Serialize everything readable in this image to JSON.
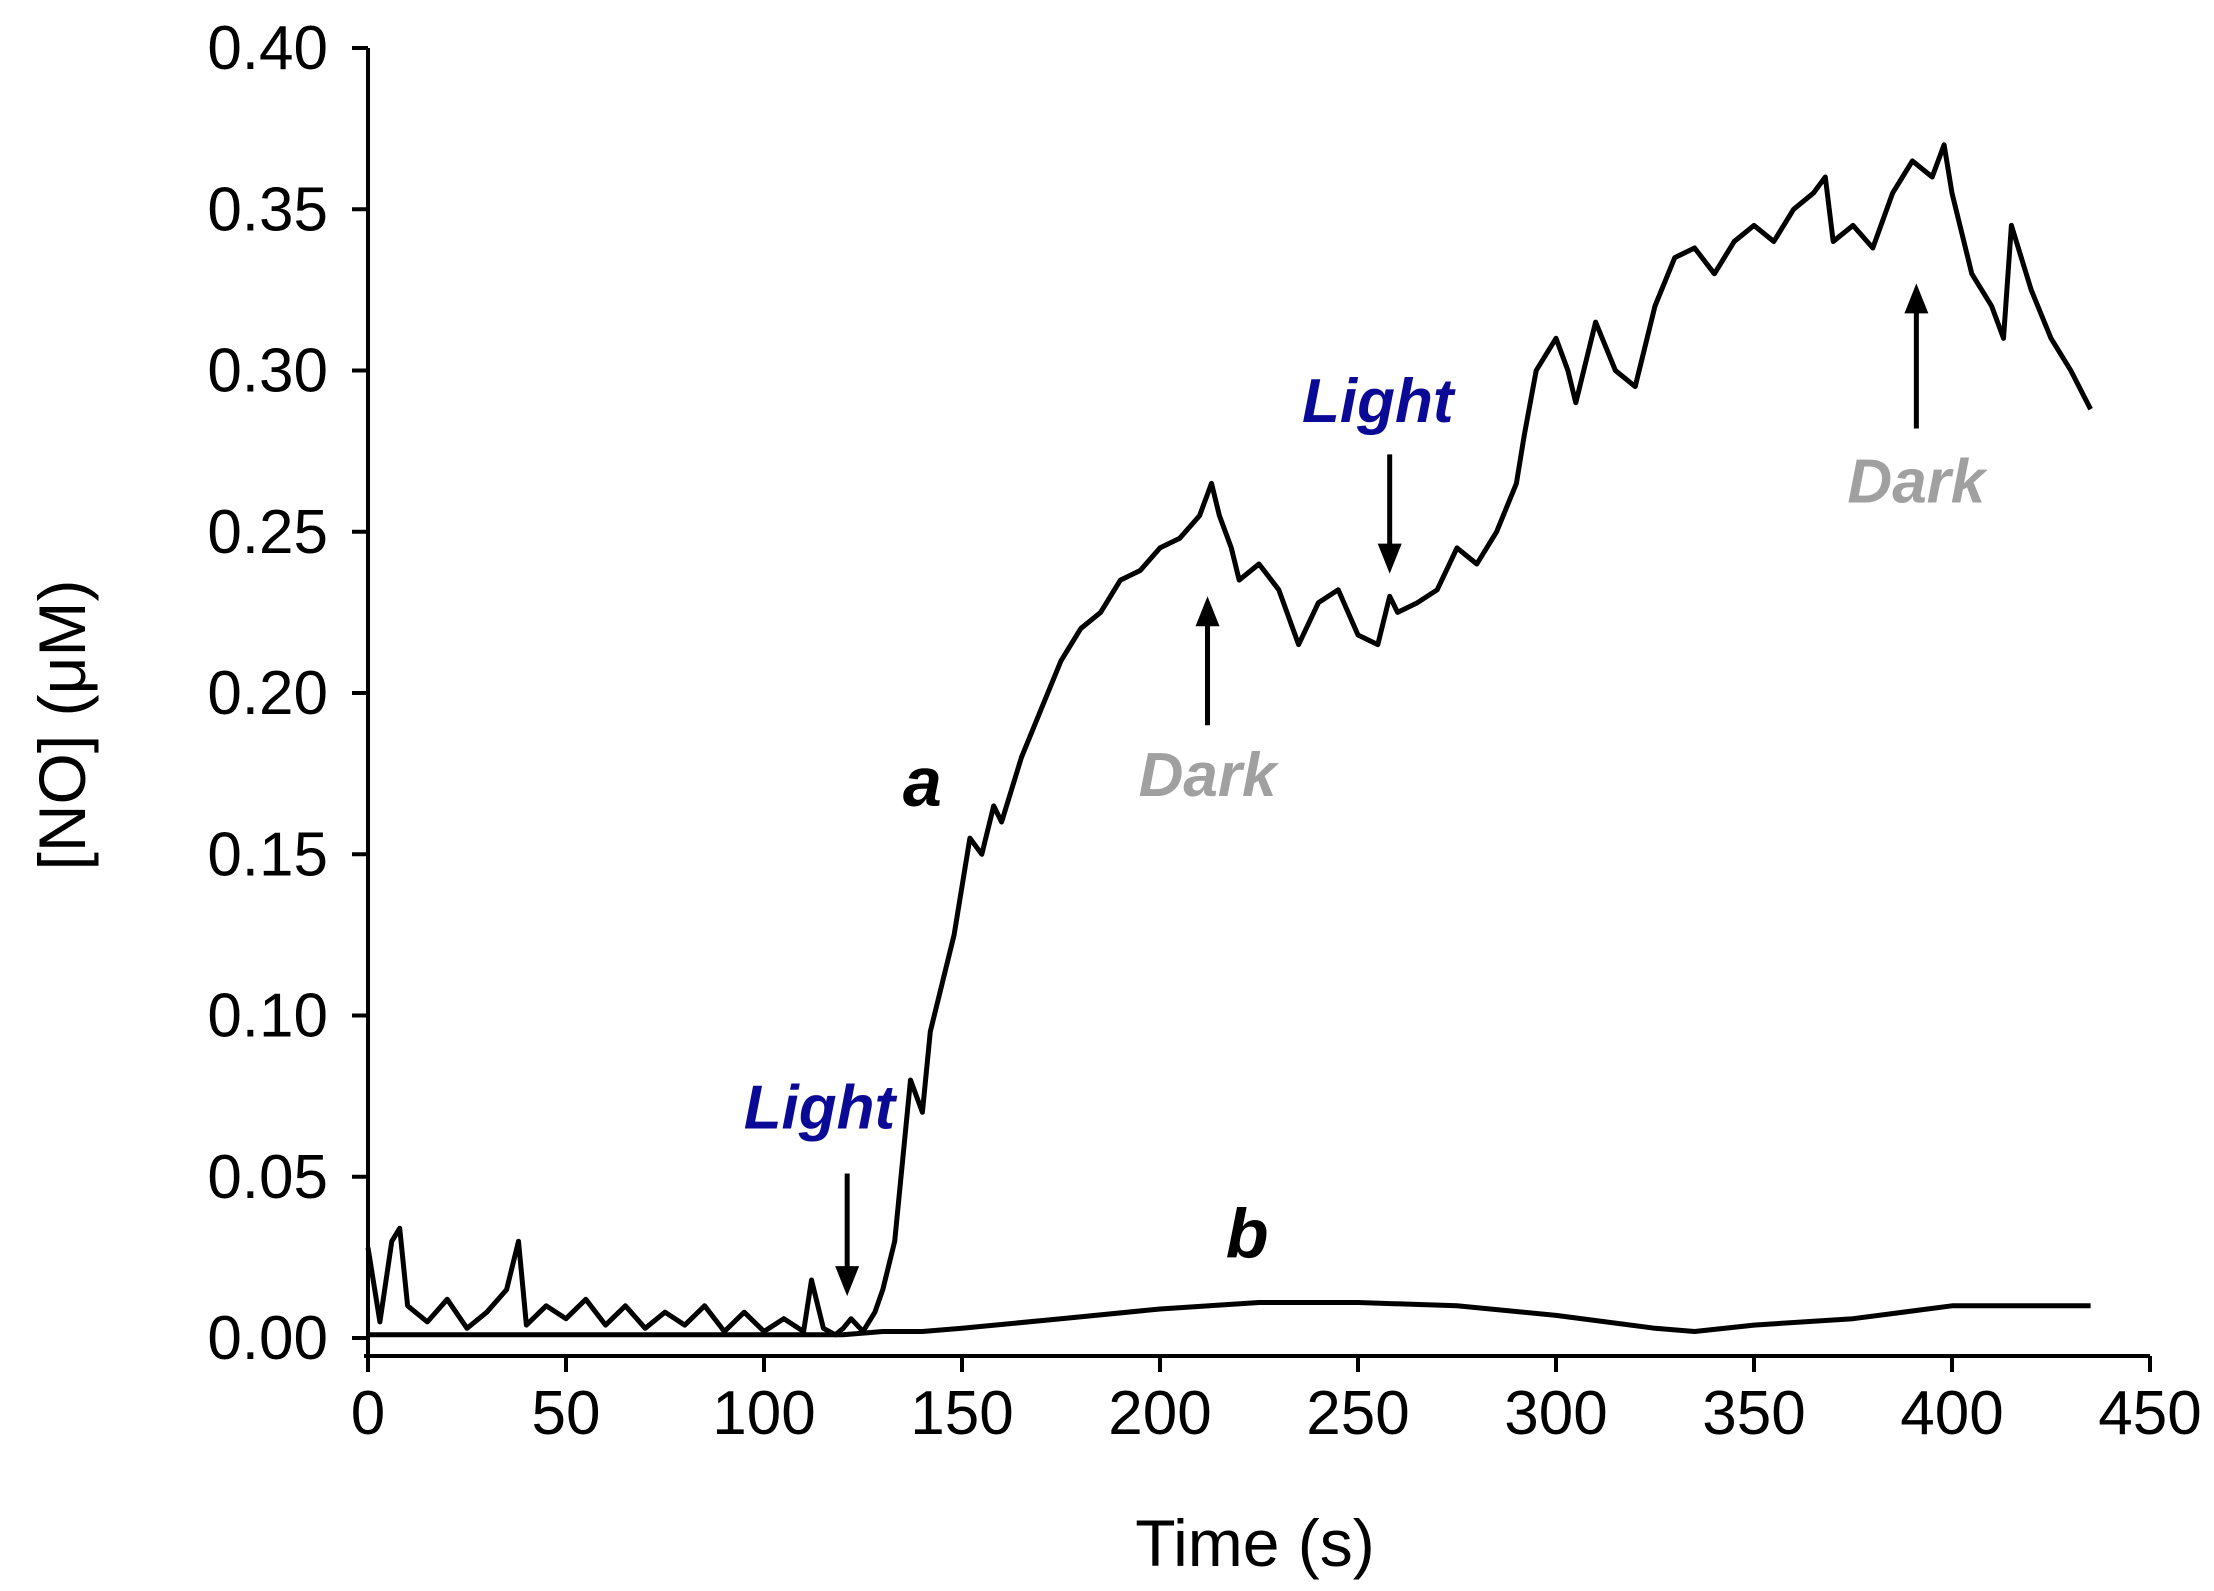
{
  "chart_data": {
    "type": "line",
    "xlabel": "Time (s)",
    "ylabel": "[NO] (μM)",
    "xlim": [
      0,
      450
    ],
    "ylim": [
      0.0,
      0.4
    ],
    "x_ticks": [
      "0",
      "50",
      "100",
      "150",
      "200",
      "250",
      "300",
      "350",
      "400",
      "450"
    ],
    "y_ticks": [
      "0.00",
      "0.05",
      "0.10",
      "0.15",
      "0.20",
      "0.25",
      "0.30",
      "0.35",
      "0.40"
    ],
    "grid": false,
    "series": [
      {
        "name": "a",
        "x": [
          0,
          3,
          6,
          8,
          10,
          15,
          20,
          25,
          30,
          35,
          38,
          40,
          45,
          50,
          55,
          60,
          65,
          70,
          75,
          80,
          85,
          90,
          95,
          100,
          105,
          110,
          112,
          115,
          118,
          120,
          122,
          125,
          128,
          130,
          133,
          135,
          137,
          140,
          142,
          145,
          148,
          150,
          152,
          155,
          158,
          160,
          165,
          170,
          175,
          180,
          185,
          190,
          195,
          200,
          205,
          210,
          213,
          215,
          218,
          220,
          225,
          230,
          235,
          240,
          245,
          250,
          255,
          258,
          260,
          265,
          270,
          275,
          280,
          285,
          290,
          292,
          295,
          300,
          303,
          305,
          310,
          315,
          320,
          325,
          330,
          335,
          340,
          345,
          350,
          355,
          360,
          365,
          368,
          370,
          375,
          380,
          385,
          390,
          395,
          398,
          400,
          405,
          410,
          413,
          415,
          420,
          425,
          430,
          435
        ],
        "y": [
          0.028,
          0.005,
          0.03,
          0.034,
          0.01,
          0.005,
          0.012,
          0.003,
          0.008,
          0.015,
          0.03,
          0.004,
          0.01,
          0.006,
          0.012,
          0.004,
          0.01,
          0.003,
          0.008,
          0.004,
          0.01,
          0.002,
          0.008,
          0.002,
          0.006,
          0.002,
          0.018,
          0.003,
          0.001,
          0.003,
          0.006,
          0.002,
          0.008,
          0.015,
          0.03,
          0.055,
          0.08,
          0.07,
          0.095,
          0.11,
          0.125,
          0.14,
          0.155,
          0.15,
          0.165,
          0.16,
          0.18,
          0.195,
          0.21,
          0.22,
          0.225,
          0.235,
          0.238,
          0.245,
          0.248,
          0.255,
          0.265,
          0.255,
          0.245,
          0.235,
          0.24,
          0.232,
          0.215,
          0.228,
          0.232,
          0.218,
          0.215,
          0.23,
          0.225,
          0.228,
          0.232,
          0.245,
          0.24,
          0.25,
          0.265,
          0.28,
          0.3,
          0.31,
          0.3,
          0.29,
          0.315,
          0.3,
          0.295,
          0.32,
          0.335,
          0.338,
          0.33,
          0.34,
          0.345,
          0.34,
          0.35,
          0.355,
          0.36,
          0.34,
          0.345,
          0.338,
          0.355,
          0.365,
          0.36,
          0.37,
          0.355,
          0.33,
          0.32,
          0.31,
          0.345,
          0.325,
          0.31,
          0.3,
          0.288
        ]
      },
      {
        "name": "b",
        "x": [
          0,
          25,
          50,
          75,
          100,
          120,
          130,
          140,
          150,
          175,
          200,
          225,
          250,
          275,
          300,
          325,
          335,
          350,
          375,
          400,
          425,
          435
        ],
        "y": [
          0.001,
          0.001,
          0.001,
          0.001,
          0.001,
          0.001,
          0.002,
          0.002,
          0.003,
          0.006,
          0.009,
          0.011,
          0.011,
          0.01,
          0.007,
          0.003,
          0.002,
          0.004,
          0.006,
          0.01,
          0.01,
          0.01
        ]
      }
    ],
    "curve_labels": [
      {
        "text": "a",
        "x": 140,
        "y": 0.165
      },
      {
        "text": "b",
        "x": 222,
        "y": 0.025
      }
    ],
    "annotations": [
      {
        "text": "Light",
        "color": "#0a0a96",
        "arrow": "down",
        "x": 121,
        "y_tail": 0.051,
        "y_head": 0.013,
        "label_x": 114,
        "label_y": 0.065
      },
      {
        "text": "Dark",
        "color": "#a0a0a0",
        "arrow": "up",
        "x": 212,
        "y_tail": 0.19,
        "y_head": 0.23,
        "label_x": 212,
        "label_y": 0.168
      },
      {
        "text": "Light",
        "color": "#0a0a96",
        "arrow": "down",
        "x": 258,
        "y_tail": 0.274,
        "y_head": 0.237,
        "label_x": 255,
        "label_y": 0.284
      },
      {
        "text": "Dark",
        "color": "#a0a0a0",
        "arrow": "up",
        "x": 391,
        "y_tail": 0.282,
        "y_head": 0.327,
        "label_x": 391,
        "label_y": 0.259
      }
    ]
  }
}
